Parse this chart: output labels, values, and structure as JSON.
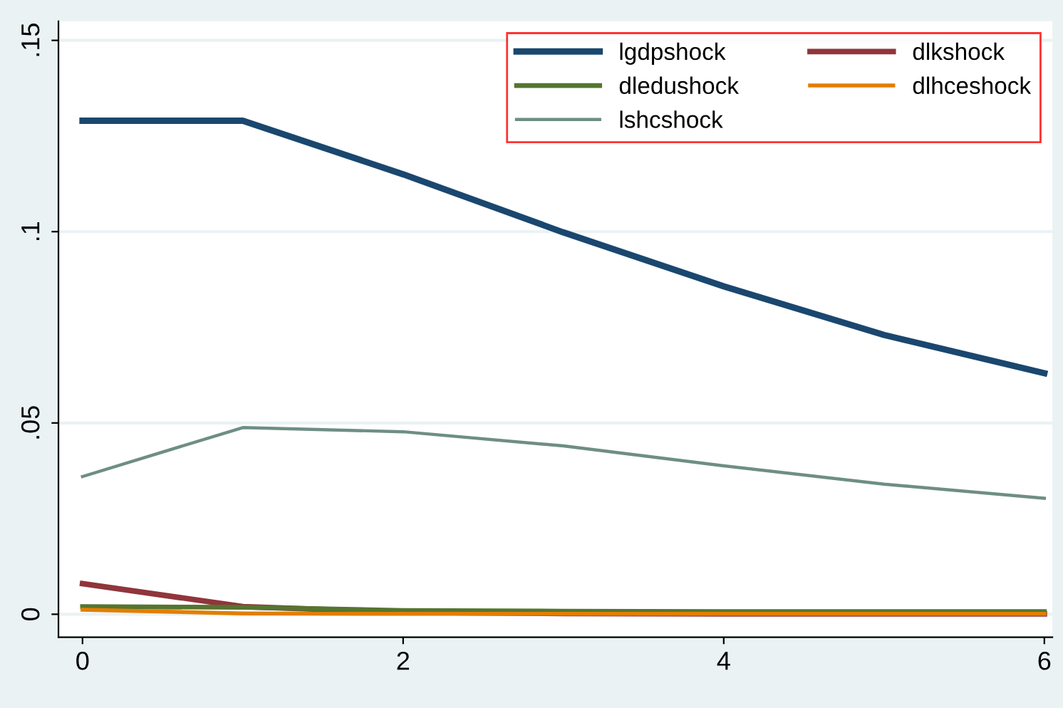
{
  "chart_data": {
    "type": "line",
    "x": [
      0,
      1,
      2,
      3,
      4,
      5,
      6
    ],
    "series": [
      {
        "name": "lgdpshock",
        "color": "#1a476f",
        "values": [
          0.129,
          0.129,
          0.115,
          0.0998,
          0.0857,
          0.073,
          0.063
        ]
      },
      {
        "name": "dlkshock",
        "color": "#90353b",
        "values": [
          0.008,
          0.002,
          0.0005,
          0.0002,
          0.0001,
          0.0001,
          0.0001
        ]
      },
      {
        "name": "dledushock",
        "color": "#55752f",
        "values": [
          0.002,
          0.0018,
          0.001,
          0.0008,
          0.0007,
          0.0007,
          0.0007
        ]
      },
      {
        "name": "dlhceshock",
        "color": "#e37e00",
        "values": [
          0.0012,
          0.0002,
          0.0001,
          0.0001,
          0.0001,
          0.0001,
          0.0001
        ]
      },
      {
        "name": "lshcshock",
        "color": "#6e8e84",
        "values": [
          0.036,
          0.0488,
          0.0477,
          0.044,
          0.0388,
          0.034,
          0.0303
        ]
      }
    ],
    "xlim": [
      -0.15,
      6.05
    ],
    "ylim": [
      -0.006,
      0.155
    ],
    "xticks": [
      0,
      2,
      4,
      6
    ],
    "yticks": [
      {
        "value": 0,
        "label": "0"
      },
      {
        "value": 0.05,
        "label": ".05"
      },
      {
        "value": 0.1,
        "label": ".1"
      },
      {
        "value": 0.15,
        "label": ".15"
      }
    ],
    "grid": "y",
    "legend": "top right",
    "marker": "none",
    "line_style": "solid"
  }
}
